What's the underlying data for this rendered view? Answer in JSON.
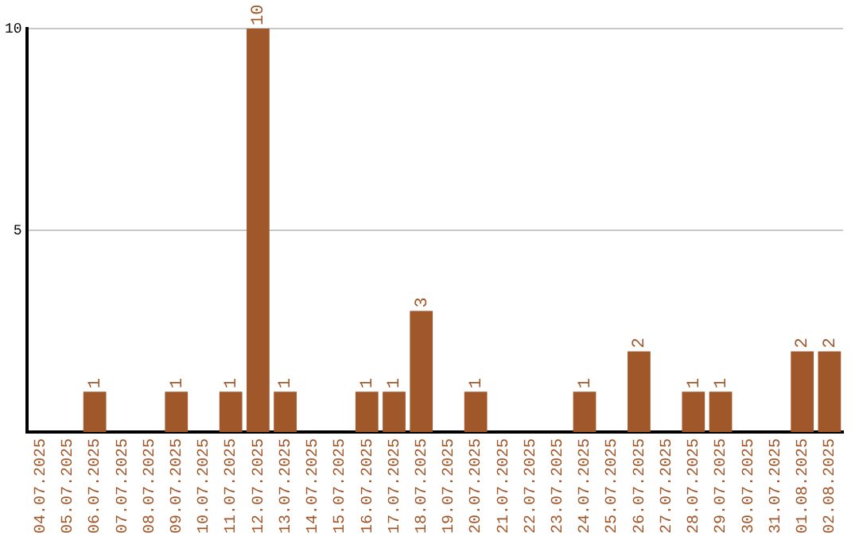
{
  "chart_data": {
    "type": "bar",
    "categories": [
      "04.07.2025",
      "05.07.2025",
      "06.07.2025",
      "07.07.2025",
      "08.07.2025",
      "09.07.2025",
      "10.07.2025",
      "11.07.2025",
      "12.07.2025",
      "13.07.2025",
      "14.07.2025",
      "15.07.2025",
      "16.07.2025",
      "17.07.2025",
      "18.07.2025",
      "19.07.2025",
      "20.07.2025",
      "21.07.2025",
      "22.07.2025",
      "23.07.2025",
      "24.07.2025",
      "25.07.2025",
      "26.07.2025",
      "27.07.2025",
      "28.07.2025",
      "29.07.2025",
      "30.07.2025",
      "31.07.2025",
      "01.08.2025",
      "02.08.2025"
    ],
    "values": [
      0,
      0,
      1,
      0,
      0,
      1,
      0,
      1,
      10,
      1,
      0,
      0,
      1,
      1,
      3,
      0,
      1,
      0,
      0,
      0,
      1,
      0,
      2,
      0,
      1,
      1,
      0,
      0,
      2,
      2
    ],
    "value_labels": [
      null,
      null,
      "1",
      null,
      null,
      "1",
      null,
      "1",
      "10",
      "1",
      null,
      null,
      "1",
      "1",
      "3",
      null,
      "1",
      null,
      null,
      null,
      "1",
      null,
      "2",
      null,
      "1",
      "1",
      null,
      null,
      "2",
      "2"
    ],
    "color": "#a0572a",
    "ylim": [
      0,
      10
    ],
    "yticks": [
      5,
      10
    ],
    "grid": "y",
    "legend": false
  }
}
